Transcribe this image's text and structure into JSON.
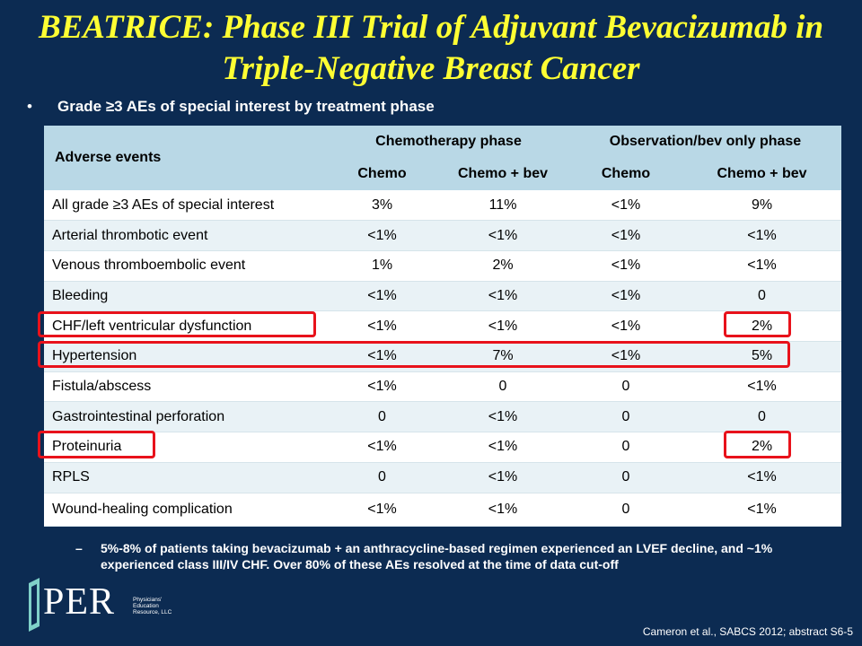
{
  "title": "BEATRICE: Phase III Trial of Adjuvant Bevacizumab in Triple-Negative Breast Cancer",
  "bullet": "Grade ≥3 AEs of special interest by treatment phase",
  "table": {
    "header_adverse": "Adverse events",
    "header_phase1": "Chemotherapy phase",
    "header_phase2": "Observation/bev only phase",
    "subheaders": [
      "Chemo",
      "Chemo + bev",
      "Chemo",
      "Chemo + bev"
    ],
    "rows": [
      [
        "All grade ≥3 AEs of special interest",
        "3%",
        "11%",
        "<1%",
        "9%"
      ],
      [
        "Arterial thrombotic event",
        "<1%",
        "<1%",
        "<1%",
        "<1%"
      ],
      [
        "Venous thromboembolic event",
        "1%",
        "2%",
        "<1%",
        "<1%"
      ],
      [
        "Bleeding",
        "<1%",
        "<1%",
        "<1%",
        "0"
      ],
      [
        "CHF/left ventricular dysfunction",
        "<1%",
        "<1%",
        "<1%",
        "2%"
      ],
      [
        "Hypertension",
        "<1%",
        "7%",
        "<1%",
        "5%"
      ],
      [
        "Fistula/abscess",
        "<1%",
        "0",
        "0",
        "<1%"
      ],
      [
        "Gastrointestinal perforation",
        "0",
        "<1%",
        "0",
        "0"
      ],
      [
        "Proteinuria",
        "<1%",
        "<1%",
        "0",
        "2%"
      ],
      [
        "RPLS",
        "0",
        "<1%",
        "0",
        "<1%"
      ],
      [
        "Wound-healing complication",
        "<1%",
        "<1%",
        "0",
        "<1%"
      ]
    ]
  },
  "subbullet_dash": "–",
  "subbullet": "5%-8% of patients taking bevacizumab + an anthracycline-based regimen experienced an LVEF decline, and ~1% experienced class III/IV CHF. Over 80% of these AEs resolved at the time of data cut-off",
  "logo": {
    "text": "PER",
    "subtext": "Physicians' Education Resource, LLC"
  },
  "citation": "Cameron et al., SABCS 2012; abstract S6-5",
  "colors": {
    "background": "#0c2b52",
    "title": "#ffff33",
    "header": "#b9d8e6",
    "highlight": "#e8121b"
  }
}
